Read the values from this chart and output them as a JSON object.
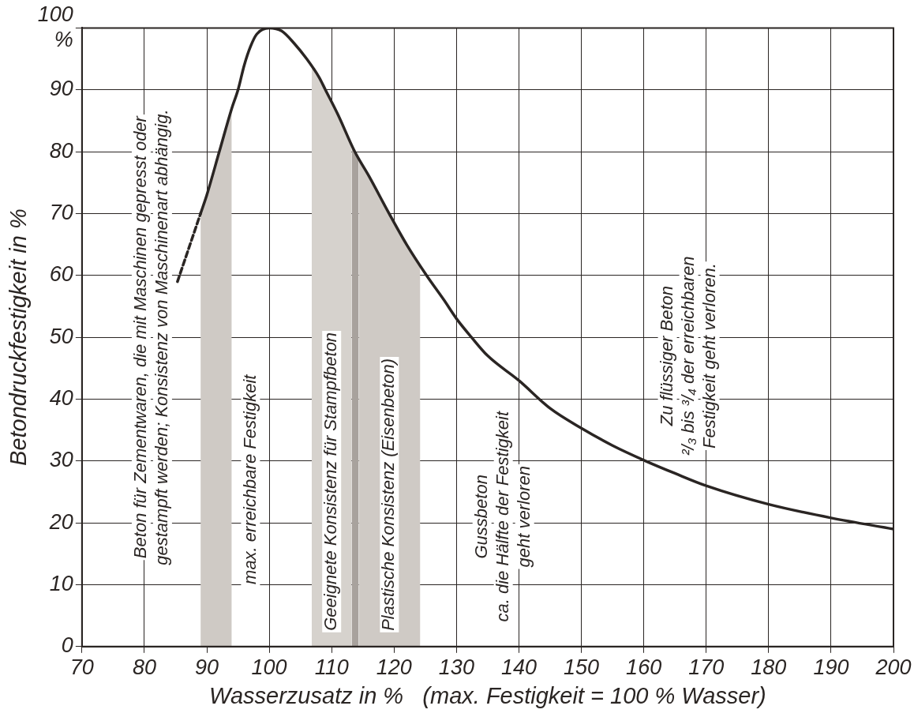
{
  "chart_data": {
    "type": "line",
    "xlabel": "Wasserzusatz in %   (max. Festigkeit = 100 % Wasser)",
    "ylabel": "Betondruckfestigkeit in %",
    "xlim": [
      70,
      200
    ],
    "xticks": [
      70,
      80,
      90,
      100,
      110,
      120,
      130,
      140,
      150,
      160,
      170,
      180,
      190,
      200
    ],
    "ylim": [
      0,
      100
    ],
    "yticks": [
      0,
      10,
      20,
      30,
      40,
      50,
      60,
      70,
      80,
      90,
      {
        "value": 100,
        "label": "100\n%"
      }
    ],
    "grid": true,
    "legend": false,
    "marker": "none",
    "series": [
      {
        "color": "#2a2523",
        "line_style": "solid",
        "x": [
          89,
          90,
          92,
          94,
          95,
          96,
          97,
          98,
          100,
          102,
          104,
          106,
          108,
          109,
          111,
          113.7,
          116,
          119.2,
          122,
          125.2,
          128,
          130,
          132.4,
          135,
          140,
          145,
          150,
          155,
          160.3,
          165,
          170,
          180,
          190,
          200
        ],
        "values": [
          70,
          73,
          80,
          87,
          90,
          94,
          97,
          99,
          100,
          99.5,
          97.5,
          95,
          92,
          90,
          86,
          80,
          76,
          70,
          65,
          60,
          56,
          53,
          50,
          47,
          43,
          38.5,
          35.3,
          32.5,
          30,
          28,
          26,
          23,
          20.8,
          19
        ]
      },
      {
        "color": "#2a2523",
        "line_style": "dashed",
        "x": [
          85.3,
          89
        ],
        "values": [
          59,
          70
        ]
      }
    ],
    "bands": [
      {
        "axis": "x",
        "from": 89,
        "to": 94,
        "color": "#cfcac5"
      },
      {
        "axis": "x",
        "from": 106.8,
        "to": 113.2,
        "color": "#d6d2cd",
        "label": "Geeignete Konsistenz für Stampfbeton"
      },
      {
        "axis": "x",
        "from": 113.2,
        "to": 114.3,
        "color": "#a8a29d"
      },
      {
        "axis": "x",
        "from": 114.3,
        "to": 124.2,
        "color": "#cfcac5",
        "label": "Plastische Konsistenz (Eisenbeton)"
      }
    ],
    "annotations": [
      "Beton für Zementwaren, die mit Maschinen gepresst oder\ngestampft werden; Konsistenz von Maschinenart abhängig.",
      "max. erreichbare Festigkeit",
      "Gussbeton\nca. die Hälfte der Festigkeit\ngeht verloren",
      "Zu flüssiger Beton\n²/₃ bis ³/₄ der erreichbaren\nFestigkeit geht verloren."
    ]
  }
}
